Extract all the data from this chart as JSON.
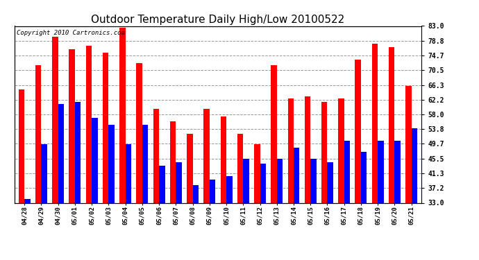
{
  "title": "Outdoor Temperature Daily High/Low 20100522",
  "copyright_text": "Copyright 2010 Cartronics.com",
  "dates": [
    "04/28",
    "04/29",
    "04/30",
    "05/01",
    "05/02",
    "05/03",
    "05/04",
    "05/05",
    "05/06",
    "05/07",
    "05/08",
    "05/09",
    "05/10",
    "05/11",
    "05/12",
    "05/13",
    "05/14",
    "05/15",
    "05/16",
    "05/17",
    "05/18",
    "05/19",
    "05/20",
    "05/21"
  ],
  "highs": [
    65.0,
    72.0,
    80.0,
    76.5,
    77.5,
    75.5,
    82.5,
    72.5,
    59.5,
    56.0,
    52.5,
    59.5,
    57.5,
    52.5,
    49.5,
    72.0,
    62.5,
    63.0,
    61.5,
    62.5,
    73.5,
    78.0,
    77.0,
    66.0
  ],
  "lows": [
    34.0,
    49.5,
    61.0,
    61.5,
    57.0,
    55.0,
    49.5,
    55.0,
    43.5,
    44.5,
    38.0,
    39.5,
    40.5,
    45.5,
    44.0,
    45.5,
    48.5,
    45.5,
    44.5,
    50.5,
    47.5,
    50.5,
    50.5,
    54.0
  ],
  "high_color": "#ff0000",
  "low_color": "#0000ff",
  "background_color": "#ffffff",
  "plot_bg_color": "#ffffff",
  "grid_color": "#999999",
  "yticks": [
    33.0,
    37.2,
    41.3,
    45.5,
    49.7,
    53.8,
    58.0,
    62.2,
    66.3,
    70.5,
    74.7,
    78.8,
    83.0
  ],
  "ymin": 33.0,
  "ymax": 83.0,
  "title_fontsize": 11,
  "copyright_fontsize": 6.5,
  "bar_width": 0.35
}
